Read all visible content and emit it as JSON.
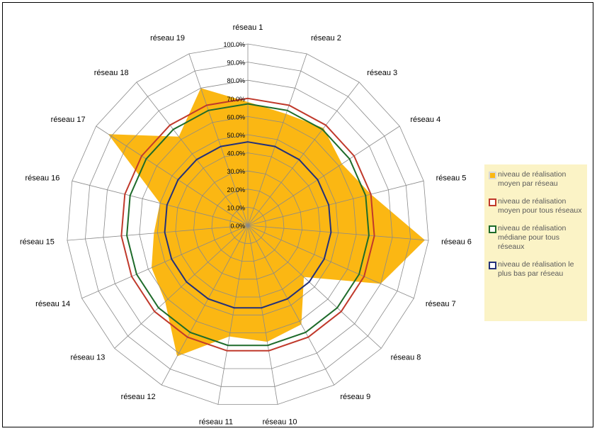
{
  "chart_data": {
    "type": "radar",
    "categories": [
      "réseau 1",
      "réseau 2",
      "réseau 3",
      "réseau 4",
      "réseau 5",
      "réseau 6",
      "réseau 7",
      "réseau 8",
      "réseau 9",
      "réseau 10",
      "réseau 11",
      "réseau 12",
      "réseau 13",
      "réseau 14",
      "réseau 15",
      "réseau 16",
      "réseau 17",
      "réseau 18",
      "réseau 19"
    ],
    "ticks": [
      "0.0%",
      "10.0%",
      "20.0%",
      "30.0%",
      "40.0%",
      "50.0%",
      "60.0%",
      "70.0%",
      "80.0%",
      "90.0%",
      "100.0%"
    ],
    "rlim": [
      0,
      100
    ],
    "series": [
      {
        "name": "niveau de réalisation moyen par réseau",
        "type": "area",
        "color": "#fbb713",
        "values": [
          68,
          65,
          68,
          62,
          70,
          98,
          80,
          42,
          62,
          65,
          62,
          82,
          62,
          58,
          52,
          50,
          92,
          62,
          80
        ]
      },
      {
        "name": "niveau de réalisation moyen pour tous réseaux",
        "type": "line",
        "color": "#c0392b",
        "values": [
          70,
          70,
          70,
          70,
          70,
          70,
          70,
          70,
          70,
          70,
          70,
          70,
          70,
          70,
          70,
          70,
          70,
          70,
          70
        ]
      },
      {
        "name": "niveau de réalisation médiane pour tous réseaux",
        "type": "line",
        "color": "#1e6b2a",
        "values": [
          67,
          67,
          67,
          67,
          67,
          67,
          67,
          67,
          67,
          67,
          67,
          67,
          67,
          67,
          67,
          67,
          67,
          67,
          67
        ]
      },
      {
        "name": "niveau de réalisation le plus bas par réseau",
        "type": "line",
        "color": "#23317a",
        "values": [
          46,
          46,
          46,
          46,
          46,
          46,
          46,
          46,
          46,
          46,
          46,
          46,
          46,
          46,
          46,
          46,
          46,
          46,
          46
        ]
      }
    ],
    "legend_position": "right",
    "grid": true
  },
  "legend": {
    "items": [
      {
        "lines": [
          "niveau de réalisation",
          "moyen par réseau"
        ],
        "color": "#fbb713"
      },
      {
        "lines": [
          "niveau de réalisation",
          "moyen pour tous réseaux"
        ],
        "color": "#c0392b"
      },
      {
        "lines": [
          "niveau de réalisation",
          "médiane pour tous",
          "réseaux"
        ],
        "color": "#1e6b2a"
      },
      {
        "lines": [
          "niveau de réalisation le",
          "plus bas par réseau"
        ],
        "color": "#23317a"
      }
    ]
  }
}
